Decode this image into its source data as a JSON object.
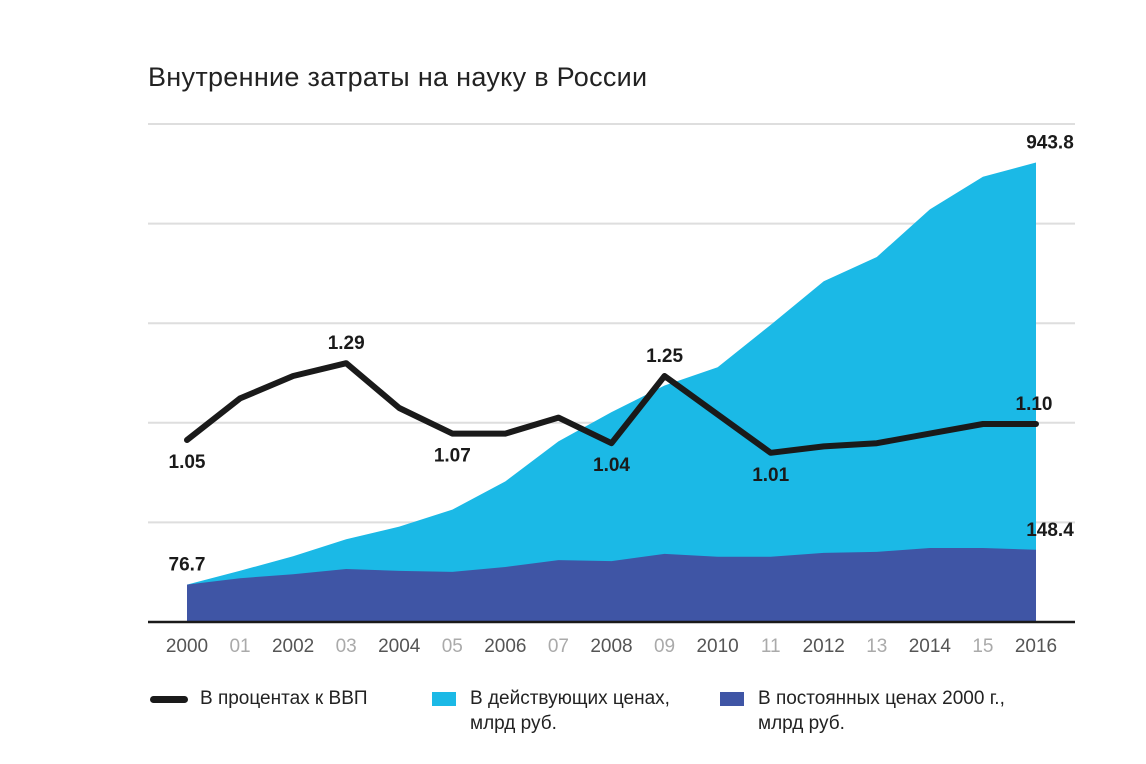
{
  "title": "Внутренние затраты на науку в России",
  "chart_data": {
    "type": "area",
    "title": "Внутренние затраты на науку в России",
    "x": [
      2000,
      2001,
      2002,
      2003,
      2004,
      2005,
      2006,
      2007,
      2008,
      2009,
      2010,
      2011,
      2012,
      2013,
      2014,
      2015,
      2016
    ],
    "tick_labels": [
      "2000",
      "01",
      "2002",
      "03",
      "2004",
      "05",
      "2006",
      "07",
      "2008",
      "09",
      "2010",
      "11",
      "2012",
      "13",
      "2014",
      "15",
      "2016"
    ],
    "grid": true,
    "area_ylim": [
      0,
      1023
    ],
    "series": [
      {
        "name": "В действующих ценах, млрд руб.",
        "type": "area",
        "color": "#1bb9e6",
        "values": [
          76.7,
          105.3,
          135.0,
          169.9,
          196.0,
          230.8,
          288.8,
          371.1,
          431.1,
          485.8,
          523.4,
          610.4,
          699.9,
          749.8,
          847.5,
          914.7,
          943.8
        ]
      },
      {
        "name": "В постоянных ценах 2000 г., млрд руб.",
        "type": "area",
        "color": "#3f55a5",
        "values": [
          76.7,
          90,
          98,
          109,
          105,
          103,
          113,
          127,
          125,
          140,
          134,
          134,
          142,
          144,
          152,
          152,
          148.4
        ]
      },
      {
        "name": "В процентах к ВВП",
        "type": "line",
        "color": "#1a1a1a",
        "values": [
          1.05,
          1.18,
          1.25,
          1.29,
          1.15,
          1.07,
          1.07,
          1.12,
          1.04,
          1.25,
          1.13,
          1.01,
          1.03,
          1.04,
          1.07,
          1.1,
          1.1
        ]
      }
    ],
    "annotations": [
      {
        "series": 2,
        "index": 0,
        "text": "1.05",
        "pos": "below"
      },
      {
        "series": 2,
        "index": 3,
        "text": "1.29",
        "pos": "above"
      },
      {
        "series": 2,
        "index": 5,
        "text": "1.07",
        "pos": "below"
      },
      {
        "series": 2,
        "index": 8,
        "text": "1.04",
        "pos": "below"
      },
      {
        "series": 2,
        "index": 9,
        "text": "1.25",
        "pos": "above"
      },
      {
        "series": 2,
        "index": 11,
        "text": "1.01",
        "pos": "below"
      },
      {
        "series": 2,
        "index": 16,
        "text": "1.10",
        "pos": "above"
      },
      {
        "series": 0,
        "index": 0,
        "text": "76.7",
        "pos": "above"
      },
      {
        "series": 0,
        "index": 16,
        "text": "943.8",
        "pos": "above"
      },
      {
        "series": 1,
        "index": 16,
        "text": "148.4",
        "pos": "above"
      }
    ]
  },
  "legend": [
    {
      "line1": "В процентах к ВВП",
      "line2": ""
    },
    {
      "line1": "В действующих ценах,",
      "line2": "млрд руб."
    },
    {
      "line1": "В постоянных ценах 2000 г.,",
      "line2": "млрд руб."
    }
  ]
}
